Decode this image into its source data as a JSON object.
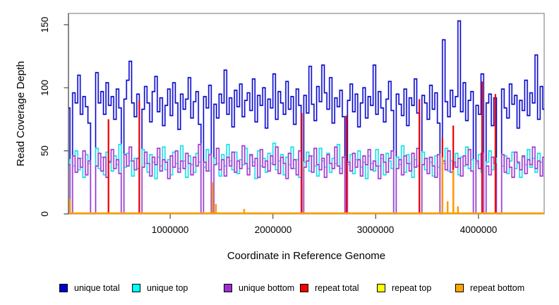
{
  "figure": {
    "ylabel": "Read Coverage Depth",
    "xlabel": "Coordinate in Reference Genome",
    "y_ticks": [
      "0",
      "50",
      "100",
      "150"
    ],
    "x_ticks": [
      "1000000",
      "2000000",
      "3000000",
      "4000000"
    ]
  },
  "legend": {
    "items": [
      {
        "label": "unique total",
        "color": "#0000CD"
      },
      {
        "label": "unique top",
        "color": "#00FFFF"
      },
      {
        "label": "unique bottom",
        "color": "#9932CC"
      },
      {
        "label": "repeat total",
        "color": "#FF0000"
      },
      {
        "label": "repeat top",
        "color": "#FFFF00"
      },
      {
        "label": "repeat bottom",
        "color": "#FFA500"
      }
    ]
  },
  "chart_data": {
    "type": "line",
    "title": "",
    "xlabel": "Coordinate in Reference Genome",
    "ylabel": "Read Coverage Depth",
    "ylim": [
      0,
      155
    ],
    "xlim": [
      0,
      4650000
    ],
    "y_ticks": [
      0,
      50,
      100,
      150
    ],
    "x_ticks": [
      1000000,
      2000000,
      3000000,
      4000000
    ],
    "grid": false,
    "legend_position": "bottom",
    "x_bin": 25000,
    "n_bins": 186,
    "series": [
      {
        "name": "unique total",
        "color": "#0000CD",
        "pale": "#8F8FE8",
        "style": "step",
        "values": [
          84,
          0,
          96,
          88,
          110,
          79,
          93,
          85,
          72,
          0,
          0,
          112,
          88,
          97,
          79,
          104,
          86,
          93,
          75,
          99,
          84,
          0,
          91,
          106,
          121,
          88,
          77,
          95,
          0,
          83,
          101,
          88,
          73,
          97,
          109,
          81,
          92,
          70,
          86,
          99,
          78,
          104,
          88,
          67,
          95,
          83,
          91,
          108,
          76,
          89,
          97,
          71,
          0,
          93,
          84,
          102,
          0,
          87,
          76,
          95,
          88,
          114,
          79,
          92,
          69,
          98,
          85,
          103,
          77,
          90,
          96,
          82,
          107,
          73,
          94,
          86,
          100,
          68,
          91,
          84,
          111,
          75,
          97,
          88,
          79,
          105,
          83,
          93,
          71,
          99,
          86,
          0,
          94,
          80,
          117,
          87,
          74,
          101,
          89,
          118,
          96,
          83,
          108,
          72,
          92,
          85,
          98,
          77,
          0,
          90,
          103,
          81,
          95,
          69,
          88,
          100,
          76,
          93,
          86,
          118,
          79,
          97,
          84,
          73,
          91,
          105,
          82,
          0,
          95,
          87,
          78,
          99,
          70,
          92,
          86,
          107,
          80,
          0,
          94,
          88,
          75,
          102,
          83,
          96,
          72,
          0,
          138,
          89,
          77,
          98,
          85,
          93,
          153,
          81,
          104,
          74,
          90,
          97,
          0,
          86,
          79,
          111,
          0,
          88,
          95,
          70,
          92,
          0,
          0,
          99,
          84,
          76,
          103,
          87,
          94,
          68,
          90,
          82,
          106,
          78,
          96,
          88,
          126,
          75,
          101,
          83
        ]
      },
      {
        "name": "unique top",
        "color": "#00E0E8",
        "pale": "#9BEFF5",
        "style": "step",
        "values": [
          43,
          0,
          38,
          50,
          35,
          44,
          29,
          47,
          40,
          0,
          0,
          52,
          36,
          45,
          31,
          49,
          42,
          34,
          46,
          39,
          55,
          0,
          37,
          48,
          42,
          30,
          44,
          36,
          0,
          51,
          40,
          33,
          47,
          41,
          28,
          45,
          38,
          53,
          35,
          43,
          31,
          49,
          40,
          36,
          54,
          42,
          29,
          46,
          39,
          33,
          48,
          41,
          0,
          37,
          51,
          34,
          0,
          44,
          40,
          30,
          47,
          38,
          55,
          42,
          35,
          49,
          32,
          43,
          39,
          52,
          36,
          46,
          41,
          28,
          50,
          38,
          44,
          33,
          48,
          40,
          56,
          35,
          42,
          47,
          31,
          45,
          39,
          53,
          36,
          43,
          29,
          0,
          41,
          49,
          34,
          46,
          38,
          30,
          52,
          42,
          37,
          48,
          33,
          44,
          40,
          55,
          36,
          45,
          0,
          39,
          47,
          32,
          43,
          50,
          37,
          41,
          28,
          46,
          40,
          34,
          51,
          38,
          44,
          31,
          48,
          42,
          36,
          0,
          45,
          39,
          54,
          33,
          47,
          40,
          29,
          43,
          38,
          0,
          49,
          35,
          44,
          41,
          30,
          46,
          37,
          0,
          40,
          52,
          34,
          42,
          39,
          48,
          31,
          45,
          38,
          53,
          36,
          43,
          0,
          40,
          47,
          33,
          0,
          41,
          50,
          35,
          44,
          0,
          0,
          38,
          46,
          32,
          42,
          49,
          36,
          40,
          29,
          45,
          39,
          51,
          37,
          44,
          33,
          48,
          41,
          35
        ]
      },
      {
        "name": "unique bottom",
        "color": "#9932CC",
        "pale": "#D2A0EC",
        "style": "step",
        "values": [
          39,
          0,
          46,
          33,
          44,
          37,
          50,
          31,
          42,
          0,
          0,
          38,
          48,
          34,
          45,
          29,
          41,
          51,
          36,
          43,
          32,
          0,
          47,
          38,
          53,
          42,
          35,
          44,
          0,
          37,
          49,
          40,
          30,
          45,
          39,
          52,
          34,
          43,
          41,
          28,
          46,
          37,
          50,
          33,
          42,
          36,
          48,
          40,
          31,
          45,
          38,
          55,
          0,
          41,
          34,
          47,
          0,
          39,
          52,
          35,
          43,
          30,
          45,
          38,
          49,
          33,
          42,
          36,
          54,
          40,
          31,
          47,
          38,
          44,
          29,
          51,
          37,
          42,
          34,
          46,
          39,
          53,
          32,
          45,
          40,
          28,
          48,
          36,
          43,
          31,
          50,
          0,
          37,
          42,
          46,
          33,
          52,
          39,
          35,
          44,
          29,
          47,
          40,
          36,
          53,
          38,
          32,
          45,
          0,
          41,
          34,
          48,
          37,
          43,
          30,
          46,
          39,
          51,
          35,
          42,
          38,
          28,
          47,
          41,
          33,
          44,
          50,
          0,
          36,
          43,
          31,
          46,
          40,
          34,
          48,
          37,
          52,
          0,
          39,
          44,
          32,
          45,
          38,
          29,
          47,
          0,
          42,
          35,
          50,
          33,
          41,
          37,
          44,
          30,
          46,
          39,
          51,
          34,
          0,
          42,
          36,
          48,
          0,
          38,
          31,
          45,
          40,
          0,
          0,
          47,
          33,
          44,
          37,
          29,
          49,
          41,
          35,
          46,
          32,
          43,
          39,
          53,
          36,
          42,
          30,
          45
        ]
      },
      {
        "name": "repeat total",
        "color": "#EE0000",
        "style": "spikes",
        "spikes": [
          [
            0,
            87
          ],
          [
            400000,
            75
          ],
          [
            700000,
            90
          ],
          [
            1410000,
            20
          ],
          [
            2280000,
            80
          ],
          [
            2715000,
            78
          ],
          [
            3425000,
            91
          ],
          [
            3650000,
            60
          ],
          [
            3755000,
            70
          ],
          [
            4035000,
            105
          ],
          [
            4165000,
            95
          ]
        ]
      },
      {
        "name": "repeat top",
        "color": "#FFFF00",
        "style": "baseline",
        "spikes": []
      },
      {
        "name": "repeat bottom",
        "color": "#FF9900",
        "style": "baseline",
        "spikes": [
          [
            25000,
            12
          ],
          [
            1410000,
            25
          ],
          [
            1445000,
            8
          ],
          [
            1720000,
            4
          ],
          [
            3650000,
            45
          ],
          [
            3700000,
            10
          ],
          [
            3755000,
            35
          ],
          [
            3800000,
            6
          ]
        ]
      }
    ]
  }
}
